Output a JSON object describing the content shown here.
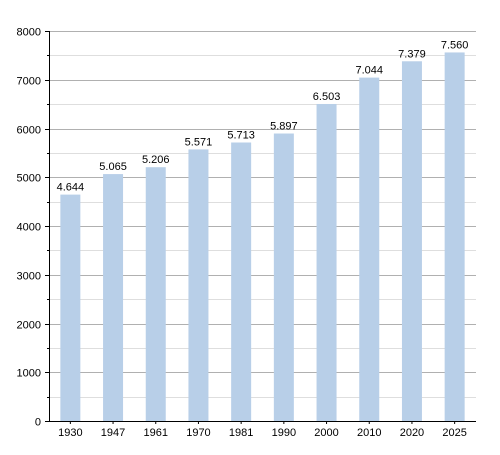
{
  "chart_data": {
    "type": "bar",
    "categories": [
      "1930",
      "1947",
      "1961",
      "1970",
      "1981",
      "1990",
      "2000",
      "2010",
      "2020",
      "2025"
    ],
    "values": [
      4644,
      5065,
      5206,
      5571,
      5713,
      5897,
      6503,
      7044,
      7379,
      7560
    ],
    "value_labels": [
      "4.644",
      "5.065",
      "5.206",
      "5.571",
      "5.713",
      "5.897",
      "6.503",
      "7.044",
      "7.379",
      "7.560"
    ],
    "ylim": [
      0,
      8000
    ],
    "y_ticks": [
      "0",
      "1000",
      "2000",
      "3000",
      "4000",
      "5000",
      "6000",
      "7000",
      "8000"
    ],
    "y_tick_values": [
      0,
      1000,
      2000,
      3000,
      4000,
      5000,
      6000,
      7000,
      8000
    ],
    "grid": true,
    "colors": {
      "bar": "#b8cfe8",
      "major_grid": "#b0b0b0",
      "minor_grid": "#dedede",
      "axis": "#000000"
    }
  }
}
